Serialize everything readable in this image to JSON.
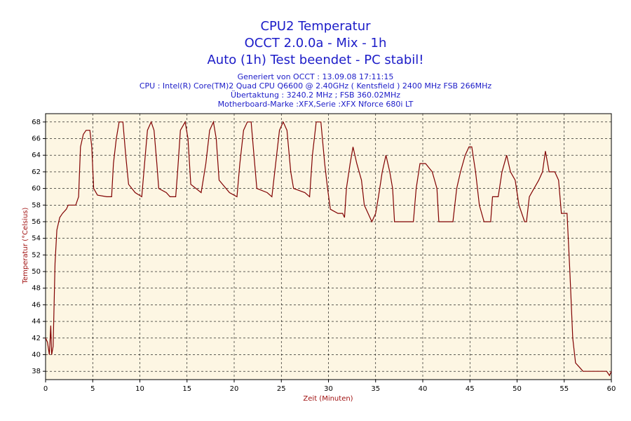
{
  "chart_data": {
    "type": "line",
    "title": "CPU2 Temperatur",
    "subtitle": [
      "OCCT 2.0.0a - Mix - 1h",
      "Auto (1h) Test beendet - PC stabil!"
    ],
    "annotations": [
      "Generiert von OCCT : 13.09.08 17:11:15",
      "CPU : Intel(R) Core(TM)2 Quad CPU Q6600 @ 2.40GHz ( Kentsfield ) 2400 MHz FSB 266MHz",
      "Übertaktung : 3240.2 MHz ; FSB 360.02MHz",
      "Motherboard-Marke :XFX,Serie :XFX Nforce 680i LT"
    ],
    "x_label": "Zeit (Minuten)",
    "y_label": "Temperatur (°Celsius)",
    "xlim": [
      0,
      60
    ],
    "xticks": [
      0,
      5,
      10,
      15,
      20,
      25,
      30,
      35,
      40,
      45,
      50,
      55,
      60
    ],
    "ylim": [
      37,
      69
    ],
    "yticks": [
      38,
      40,
      42,
      44,
      46,
      48,
      50,
      52,
      54,
      56,
      58,
      60,
      62,
      64,
      66,
      68
    ],
    "grid": true,
    "series": [
      {
        "color": "#800000",
        "x": [
          0,
          0.2,
          0.4,
          0.55,
          0.65,
          0.8,
          1.0,
          1.2,
          1.5,
          1.8,
          2.2,
          2.4,
          2.8,
          3.2,
          3.5,
          3.7,
          4.0,
          4.3,
          4.7,
          4.9,
          5.1,
          5.5,
          6.5,
          7.0,
          7.2,
          7.5,
          7.8,
          8.2,
          8.5,
          8.8,
          9.5,
          10.2,
          10.5,
          10.8,
          11.2,
          11.5,
          11.8,
          12.0,
          12.8,
          13.2,
          13.8,
          14.0,
          14.3,
          14.8,
          15.1,
          15.4,
          16.5,
          17.0,
          17.4,
          17.8,
          18.1,
          18.4,
          19.5,
          20.3,
          20.6,
          21.0,
          21.4,
          21.8,
          22.1,
          22.4,
          23.5,
          24.0,
          24.4,
          24.8,
          25.2,
          25.6,
          26.0,
          26.3,
          27.5,
          28.0,
          28.3,
          28.7,
          29.2,
          29.6,
          29.9,
          30.2,
          31.0,
          31.5,
          31.7,
          31.9,
          32.3,
          32.6,
          33.0,
          33.5,
          33.8,
          34.2,
          34.6,
          35.0,
          35.3,
          35.7,
          36.1,
          36.5,
          36.8,
          37.0,
          38.5,
          39.0,
          39.3,
          39.7,
          40.3,
          41.0,
          41.5,
          41.7,
          43.2,
          43.6,
          44.0,
          44.5,
          44.9,
          45.2,
          45.6,
          46.0,
          46.5,
          47.2,
          47.4,
          48.0,
          48.4,
          48.9,
          49.3,
          49.8,
          50.2,
          50.8,
          51.0,
          51.3,
          51.8,
          52.3,
          52.7,
          53.0,
          53.4,
          54.0,
          54.4,
          54.7,
          55.3,
          55.6,
          55.9,
          56.2,
          56.6,
          57.0,
          59.5,
          59.8,
          60
        ],
        "values": [
          42,
          41.5,
          40,
          43.5,
          40,
          41,
          51,
          55,
          56.5,
          57,
          57.5,
          58,
          58,
          58,
          59,
          65,
          66.5,
          67,
          67,
          65,
          60,
          59.2,
          59,
          59,
          63,
          66,
          68,
          68,
          64,
          60.5,
          59.5,
          59,
          63,
          67,
          68,
          67,
          63,
          60,
          59.5,
          59,
          59,
          62,
          67,
          68,
          66,
          60.5,
          59.5,
          63,
          67,
          68,
          66,
          61,
          59.5,
          59,
          63,
          67,
          68,
          68,
          64,
          60,
          59.5,
          59,
          63,
          67,
          68,
          67,
          62,
          60,
          59.5,
          59,
          64,
          68,
          68,
          63,
          60,
          57.5,
          57,
          57,
          56.5,
          60,
          63,
          65,
          63,
          61,
          58,
          57,
          56,
          57,
          59,
          62,
          64,
          62,
          60,
          56,
          56,
          56,
          60,
          63,
          63,
          62,
          60,
          56,
          56,
          60,
          62,
          64,
          65,
          65,
          62,
          58,
          56,
          56,
          59,
          59,
          62,
          64,
          62,
          61,
          58,
          56,
          56,
          59,
          60,
          61,
          62,
          64.5,
          62,
          62,
          61,
          57,
          57,
          50,
          42,
          39,
          38.5,
          38,
          38,
          37.5,
          38
        ]
      }
    ]
  }
}
